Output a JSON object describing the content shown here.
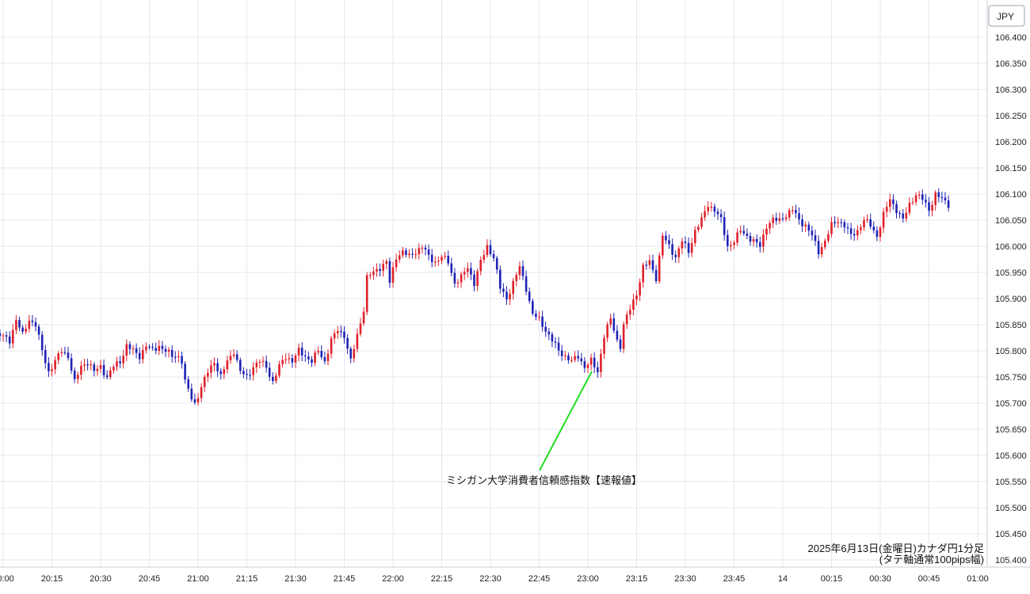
{
  "currency_badge": "JPY",
  "annotation": "ミシガン大学消費者信頼感指数【速報値】",
  "caption": {
    "line1": "2025年6月13日(金曜日)カナダ円1分足",
    "line2": "(タテ軸通常100pips幅)"
  },
  "colors": {
    "up": "#e0202a",
    "down": "#1e22b4",
    "grid": "#e3e8ee",
    "annotation_line": "#22dd22",
    "axis_text": "#222222"
  },
  "chart_data": {
    "type": "candlestick",
    "title": "",
    "xlabel": "",
    "ylabel": "",
    "ylim": [
      105.38,
      106.44
    ],
    "y_ticks": [
      "106.400",
      "106.350",
      "106.300",
      "106.250",
      "106.200",
      "106.150",
      "106.100",
      "106.050",
      "106.000",
      "105.950",
      "105.900",
      "105.850",
      "105.800",
      "105.750",
      "105.700",
      "105.650",
      "105.600",
      "105.550",
      "105.500",
      "105.450",
      "105.400"
    ],
    "x_ticks": [
      {
        "label": "20:00",
        "minute": 0
      },
      {
        "label": "20:15",
        "minute": 15
      },
      {
        "label": "20:30",
        "minute": 30
      },
      {
        "label": "20:45",
        "minute": 45
      },
      {
        "label": "21:00",
        "minute": 60
      },
      {
        "label": "21:15",
        "minute": 75
      },
      {
        "label": "21:30",
        "minute": 90
      },
      {
        "label": "21:45",
        "minute": 105
      },
      {
        "label": "22:00",
        "minute": 120
      },
      {
        "label": "22:15",
        "minute": 135
      },
      {
        "label": "22:30",
        "minute": 150
      },
      {
        "label": "22:45",
        "minute": 165
      },
      {
        "label": "23:00",
        "minute": 180
      },
      {
        "label": "23:15",
        "minute": 195
      },
      {
        "label": "23:30",
        "minute": 210
      },
      {
        "label": "23:45",
        "minute": 225
      },
      {
        "label": "14",
        "minute": 240
      },
      {
        "label": "00:15",
        "minute": 255
      },
      {
        "label": "00:30",
        "minute": 270
      },
      {
        "label": "00:45",
        "minute": 285
      },
      {
        "label": "01:00",
        "minute": 300
      }
    ],
    "close_path": [
      [
        -1,
        105.83
      ],
      [
        2,
        105.82
      ],
      [
        4,
        105.86
      ],
      [
        6,
        105.83
      ],
      [
        8,
        105.86
      ],
      [
        10,
        105.85
      ],
      [
        12,
        105.8
      ],
      [
        14,
        105.76
      ],
      [
        16,
        105.78
      ],
      [
        18,
        105.8
      ],
      [
        20,
        105.79
      ],
      [
        22,
        105.74
      ],
      [
        24,
        105.77
      ],
      [
        26,
        105.78
      ],
      [
        28,
        105.76
      ],
      [
        30,
        105.77
      ],
      [
        32,
        105.75
      ],
      [
        34,
        105.77
      ],
      [
        36,
        105.78
      ],
      [
        38,
        105.81
      ],
      [
        40,
        105.8
      ],
      [
        42,
        105.79
      ],
      [
        44,
        105.81
      ],
      [
        46,
        105.8
      ],
      [
        48,
        105.81
      ],
      [
        50,
        105.8
      ],
      [
        52,
        105.79
      ],
      [
        54,
        105.79
      ],
      [
        55,
        105.78
      ],
      [
        56,
        105.74
      ],
      [
        58,
        105.71
      ],
      [
        59,
        105.7
      ],
      [
        61,
        105.73
      ],
      [
        63,
        105.76
      ],
      [
        65,
        105.78
      ],
      [
        67,
        105.75
      ],
      [
        69,
        105.78
      ],
      [
        71,
        105.8
      ],
      [
        73,
        105.76
      ],
      [
        75,
        105.75
      ],
      [
        77,
        105.77
      ],
      [
        79,
        105.78
      ],
      [
        81,
        105.77
      ],
      [
        83,
        105.74
      ],
      [
        85,
        105.77
      ],
      [
        87,
        105.79
      ],
      [
        89,
        105.78
      ],
      [
        91,
        105.8
      ],
      [
        93,
        105.79
      ],
      [
        95,
        105.78
      ],
      [
        97,
        105.8
      ],
      [
        99,
        105.78
      ],
      [
        101,
        105.82
      ],
      [
        103,
        105.84
      ],
      [
        105,
        105.83
      ],
      [
        107,
        105.78
      ],
      [
        109,
        105.83
      ],
      [
        111,
        105.88
      ],
      [
        112,
        105.94
      ],
      [
        114,
        105.95
      ],
      [
        116,
        105.96
      ],
      [
        118,
        105.97
      ],
      [
        119,
        105.93
      ],
      [
        121,
        105.98
      ],
      [
        123,
        105.99
      ],
      [
        125,
        105.98
      ],
      [
        127,
        105.99
      ],
      [
        129,
        106.0
      ],
      [
        131,
        105.98
      ],
      [
        133,
        105.97
      ],
      [
        135,
        105.98
      ],
      [
        137,
        105.97
      ],
      [
        139,
        105.93
      ],
      [
        141,
        105.94
      ],
      [
        143,
        105.96
      ],
      [
        145,
        105.93
      ],
      [
        147,
        105.97
      ],
      [
        149,
        106.0
      ],
      [
        151,
        105.98
      ],
      [
        153,
        105.92
      ],
      [
        155,
        105.9
      ],
      [
        157,
        105.93
      ],
      [
        159,
        105.96
      ],
      [
        161,
        105.92
      ],
      [
        163,
        105.87
      ],
      [
        165,
        105.86
      ],
      [
        167,
        105.84
      ],
      [
        169,
        105.82
      ],
      [
        171,
        105.8
      ],
      [
        173,
        105.79
      ],
      [
        175,
        105.78
      ],
      [
        177,
        105.79
      ],
      [
        179,
        105.77
      ],
      [
        181,
        105.78
      ],
      [
        183,
        105.76
      ],
      [
        185,
        105.83
      ],
      [
        187,
        105.86
      ],
      [
        189,
        105.82
      ],
      [
        190,
        105.81
      ],
      [
        191,
        105.85
      ],
      [
        193,
        105.88
      ],
      [
        195,
        105.91
      ],
      [
        197,
        105.96
      ],
      [
        199,
        105.97
      ],
      [
        201,
        105.94
      ],
      [
        203,
        106.02
      ],
      [
        205,
        106.0
      ],
      [
        207,
        105.98
      ],
      [
        209,
        106.01
      ],
      [
        211,
        105.99
      ],
      [
        213,
        106.03
      ],
      [
        215,
        106.05
      ],
      [
        217,
        106.08
      ],
      [
        219,
        106.07
      ],
      [
        221,
        106.05
      ],
      [
        223,
        106.0
      ],
      [
        225,
        106.01
      ],
      [
        227,
        106.03
      ],
      [
        229,
        106.02
      ],
      [
        231,
        106.01
      ],
      [
        233,
        106.0
      ],
      [
        235,
        106.04
      ],
      [
        237,
        106.05
      ],
      [
        239,
        106.05
      ],
      [
        241,
        106.06
      ],
      [
        243,
        106.07
      ],
      [
        245,
        106.05
      ],
      [
        247,
        106.04
      ],
      [
        249,
        106.02
      ],
      [
        251,
        105.99
      ],
      [
        253,
        106.01
      ],
      [
        255,
        106.04
      ],
      [
        257,
        106.05
      ],
      [
        259,
        106.04
      ],
      [
        261,
        106.02
      ],
      [
        263,
        106.03
      ],
      [
        265,
        106.05
      ],
      [
        267,
        106.04
      ],
      [
        269,
        106.02
      ],
      [
        271,
        106.06
      ],
      [
        273,
        106.09
      ],
      [
        275,
        106.07
      ],
      [
        277,
        106.05
      ],
      [
        279,
        106.08
      ],
      [
        281,
        106.1
      ],
      [
        283,
        106.09
      ],
      [
        285,
        106.07
      ],
      [
        287,
        106.1
      ],
      [
        289,
        106.09
      ],
      [
        291,
        106.08
      ]
    ]
  }
}
